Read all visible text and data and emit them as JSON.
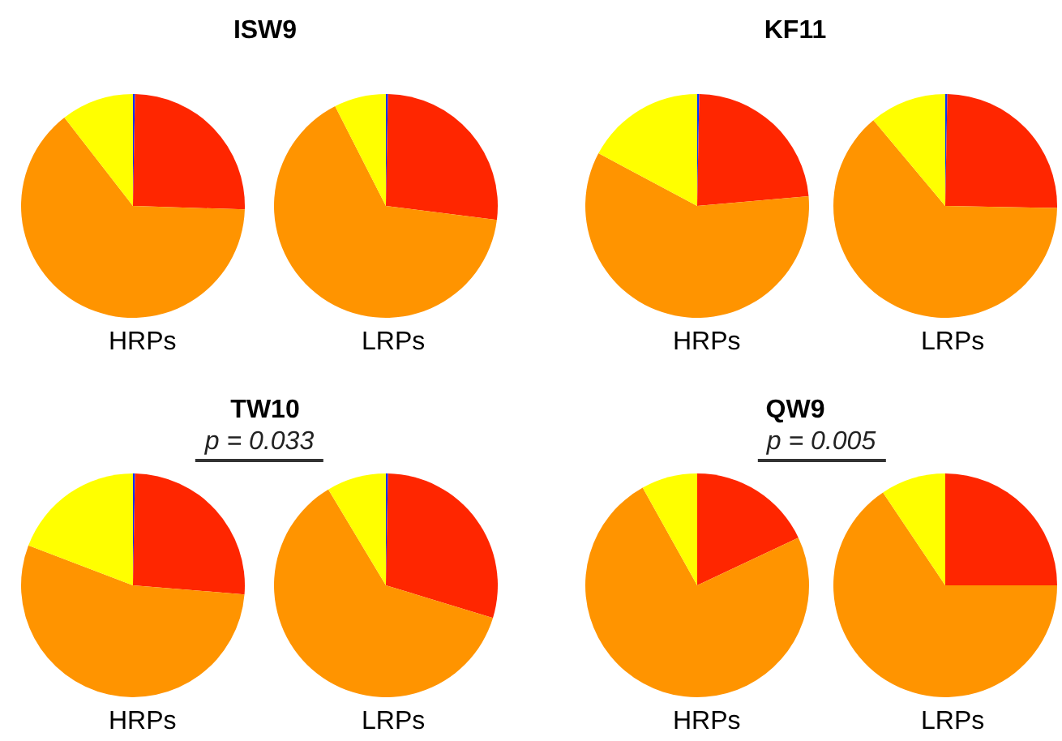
{
  "chart_data": [
    {
      "type": "pie",
      "title": "ISW9",
      "categories": [
        null,
        null,
        null,
        null
      ],
      "colors": [
        "#0033ff",
        "#ff2600",
        "#ff9400",
        "#ffff00"
      ],
      "series": [
        {
          "name": "HRPs",
          "values": [
            0.3,
            25.2,
            64,
            10.5
          ]
        },
        {
          "name": "LRPs",
          "values": [
            0.3,
            26.7,
            65.5,
            7.5
          ]
        }
      ]
    },
    {
      "type": "pie",
      "title": "KF11",
      "categories": [
        null,
        null,
        null,
        null
      ],
      "colors": [
        "#0033ff",
        "#ff2600",
        "#ff9400",
        "#ffff00"
      ],
      "series": [
        {
          "name": "HRPs",
          "values": [
            0.3,
            23.3,
            59.2,
            17.2
          ]
        },
        {
          "name": "LRPs",
          "values": [
            0.3,
            25,
            63.6,
            11.1
          ]
        }
      ]
    },
    {
      "type": "pie",
      "title": "TW10",
      "annotations": [
        "p = 0.033"
      ],
      "categories": [
        null,
        null,
        null,
        null
      ],
      "colors": [
        "#0033ff",
        "#ff2600",
        "#ff9400",
        "#ffff00"
      ],
      "series": [
        {
          "name": "HRPs",
          "values": [
            0.3,
            26,
            54.5,
            19.2
          ]
        },
        {
          "name": "LRPs",
          "values": [
            0.3,
            29.4,
            61.7,
            8.6
          ]
        }
      ]
    },
    {
      "type": "pie",
      "title": "QW9",
      "annotations": [
        "p = 0.005"
      ],
      "categories": [
        null,
        null,
        null,
        null
      ],
      "colors": [
        "#0033ff",
        "#ff2600",
        "#ff9400",
        "#ffff00"
      ],
      "series": [
        {
          "name": "HRPs",
          "values": [
            0,
            18,
            73.9,
            8.1
          ]
        },
        {
          "name": "LRPs",
          "values": [
            0,
            25,
            65.6,
            9.4
          ]
        }
      ]
    }
  ]
}
